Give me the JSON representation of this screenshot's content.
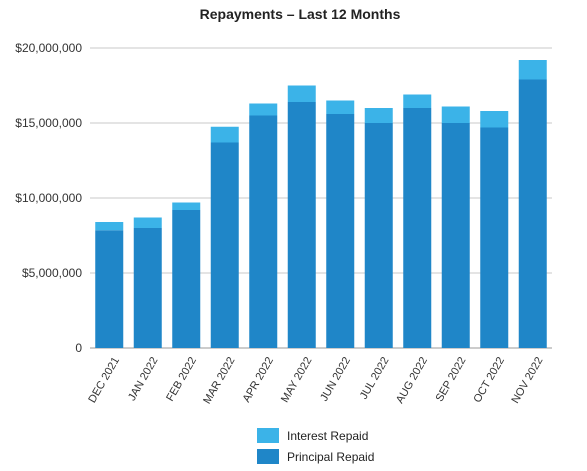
{
  "chart_data": {
    "type": "bar",
    "stacked": true,
    "title": "Repayments – Last 12 Months",
    "xlabel": "",
    "ylabel": "",
    "ylim": [
      0,
      20000000
    ],
    "yticks": [
      {
        "value": 0,
        "label": "0"
      },
      {
        "value": 5000000,
        "label": "$5,000,000"
      },
      {
        "value": 10000000,
        "label": "$10,000,000"
      },
      {
        "value": 15000000,
        "label": "$15,000,000"
      },
      {
        "value": 20000000,
        "label": "$20,000,000"
      }
    ],
    "grid": true,
    "legend_position": "bottom",
    "categories": [
      "DEC 2021",
      "JAN 2022",
      "FEB 2022",
      "MAR 2022",
      "APR 2022",
      "MAY 2022",
      "JUN 2022",
      "JUL 2022",
      "AUG 2022",
      "SEP 2022",
      "OCT 2022",
      "NOV 2022"
    ],
    "series": [
      {
        "name": "Principal Repaid",
        "color": "#1f86c8",
        "values": [
          7850000,
          8000000,
          9200000,
          13700000,
          15500000,
          16400000,
          15600000,
          15000000,
          16000000,
          15000000,
          14700000,
          17900000
        ]
      },
      {
        "name": "Interest Repaid",
        "color": "#3bb3e8",
        "values": [
          550000,
          700000,
          500000,
          1050000,
          800000,
          1100000,
          900000,
          1000000,
          900000,
          1100000,
          1100000,
          1300000
        ]
      }
    ],
    "legend_order": [
      "Interest Repaid",
      "Principal Repaid"
    ]
  }
}
